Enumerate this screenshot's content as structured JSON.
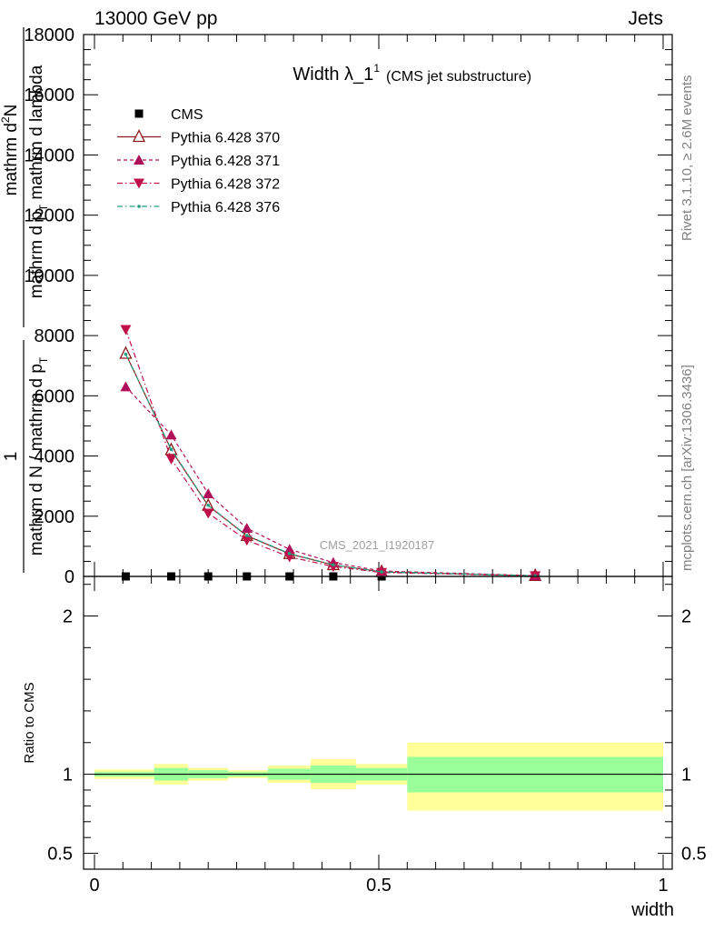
{
  "header": {
    "left": "13000 GeV pp",
    "right": "Jets"
  },
  "side": {
    "rivet": "Rivet 3.1.10, ≥ 2.6M events",
    "mcplots": "mcplots.cern.ch [arXiv:1306.3436]"
  },
  "watermark": "CMS_2021_I1920187",
  "colors": {
    "cms": "#000000",
    "p370": "#8b1a1a",
    "p371": "#b0105a",
    "p372": "#c0104a",
    "p376": "#20a080",
    "band_inner": "#99ff99",
    "band_outer": "#ffff99"
  },
  "chart_data": [
    {
      "type": "line",
      "title": "Width λ_1",
      "title_sup": "1",
      "subtitle": "(CMS jet substructure)",
      "ylabel_lines": [
        "1",
        "mathrm d N / mathrm d p_T",
        "mathrm d^2N",
        "mathrm d p_T mathrm d lambda"
      ],
      "ylabel_split": {
        "one": "1",
        "den": "mathrm d N / mathrm d p",
        "den_sub": "T",
        "num": "mathrm d",
        "num_sup": "2",
        "num2": "N",
        "den2": "mathrm d p",
        "den2_sub": "T",
        "den2_tail": " mathrm d lambda"
      },
      "xlim": [
        0,
        1
      ],
      "ylim": [
        0,
        18000
      ],
      "yticks": [
        0,
        2000,
        4000,
        6000,
        8000,
        10000,
        12000,
        14000,
        16000,
        18000
      ],
      "ytick_labels": [
        "0",
        "2000",
        "4000",
        "6000",
        "8000",
        "10000",
        "12000",
        "14000",
        "16000",
        "18000"
      ],
      "legend_position": "top-left",
      "series": [
        {
          "name": "CMS",
          "marker": "square",
          "x": [
            0.055,
            0.135,
            0.2,
            0.268,
            0.343,
            0.42,
            0.505,
            0.775
          ],
          "y": [
            0,
            0,
            0,
            0,
            0,
            0,
            0,
            0
          ]
        },
        {
          "name": "Pythia 6.428 370",
          "marker": "triangle-up-open",
          "line": "solid",
          "x": [
            0.055,
            0.135,
            0.2,
            0.268,
            0.343,
            0.42,
            0.505,
            0.775
          ],
          "y": [
            7400,
            4200,
            2350,
            1350,
            750,
            380,
            150,
            20
          ]
        },
        {
          "name": "Pythia 6.428 371",
          "marker": "triangle-up",
          "line": "dashed",
          "x": [
            0.055,
            0.135,
            0.2,
            0.268,
            0.343,
            0.42,
            0.505,
            0.775
          ],
          "y": [
            6300,
            4700,
            2750,
            1600,
            900,
            460,
            180,
            25
          ]
        },
        {
          "name": "Pythia 6.428 372",
          "marker": "triangle-down",
          "line": "dashdot",
          "x": [
            0.055,
            0.135,
            0.2,
            0.268,
            0.343,
            0.42,
            0.505,
            0.775
          ],
          "y": [
            8200,
            3900,
            2100,
            1200,
            650,
            330,
            130,
            18
          ]
        },
        {
          "name": "Pythia 6.428 376",
          "marker": "dot",
          "line": "dashdot",
          "x": [
            0.055,
            0.135,
            0.2,
            0.268,
            0.343,
            0.42,
            0.505,
            0.775
          ],
          "y": [
            7380,
            4220,
            2360,
            1360,
            760,
            385,
            152,
            20
          ]
        }
      ]
    },
    {
      "type": "area",
      "ylabel": "Ratio to CMS",
      "xlabel": "width",
      "xlim": [
        0,
        1
      ],
      "ylim": [
        0.4,
        2.25
      ],
      "xticks": [
        0,
        0.5,
        1
      ],
      "xtick_labels": [
        "0",
        "0.5",
        "1"
      ],
      "yticks": [
        0.5,
        1,
        2
      ],
      "ytick_labels": [
        "0.5",
        "1",
        "2"
      ],
      "bins": [
        {
          "lo": 0.0,
          "hi": 0.105,
          "inner": [
            0.985,
            1.015
          ],
          "outer": [
            0.97,
            1.03
          ]
        },
        {
          "lo": 0.105,
          "hi": 0.165,
          "inner": [
            0.96,
            1.04
          ],
          "outer": [
            0.935,
            1.065
          ]
        },
        {
          "lo": 0.165,
          "hi": 0.235,
          "inner": [
            0.975,
            1.025
          ],
          "outer": [
            0.96,
            1.04
          ]
        },
        {
          "lo": 0.235,
          "hi": 0.305,
          "inner": [
            0.985,
            1.015
          ],
          "outer": [
            0.975,
            1.025
          ]
        },
        {
          "lo": 0.305,
          "hi": 0.38,
          "inner": [
            0.965,
            1.035
          ],
          "outer": [
            0.945,
            1.055
          ]
        },
        {
          "lo": 0.38,
          "hi": 0.46,
          "inner": [
            0.945,
            1.055
          ],
          "outer": [
            0.905,
            1.095
          ]
        },
        {
          "lo": 0.46,
          "hi": 0.55,
          "inner": [
            0.96,
            1.04
          ],
          "outer": [
            0.935,
            1.065
          ]
        },
        {
          "lo": 0.55,
          "hi": 1.0,
          "inner": [
            0.885,
            1.11
          ],
          "outer": [
            0.77,
            1.2
          ]
        }
      ]
    }
  ]
}
